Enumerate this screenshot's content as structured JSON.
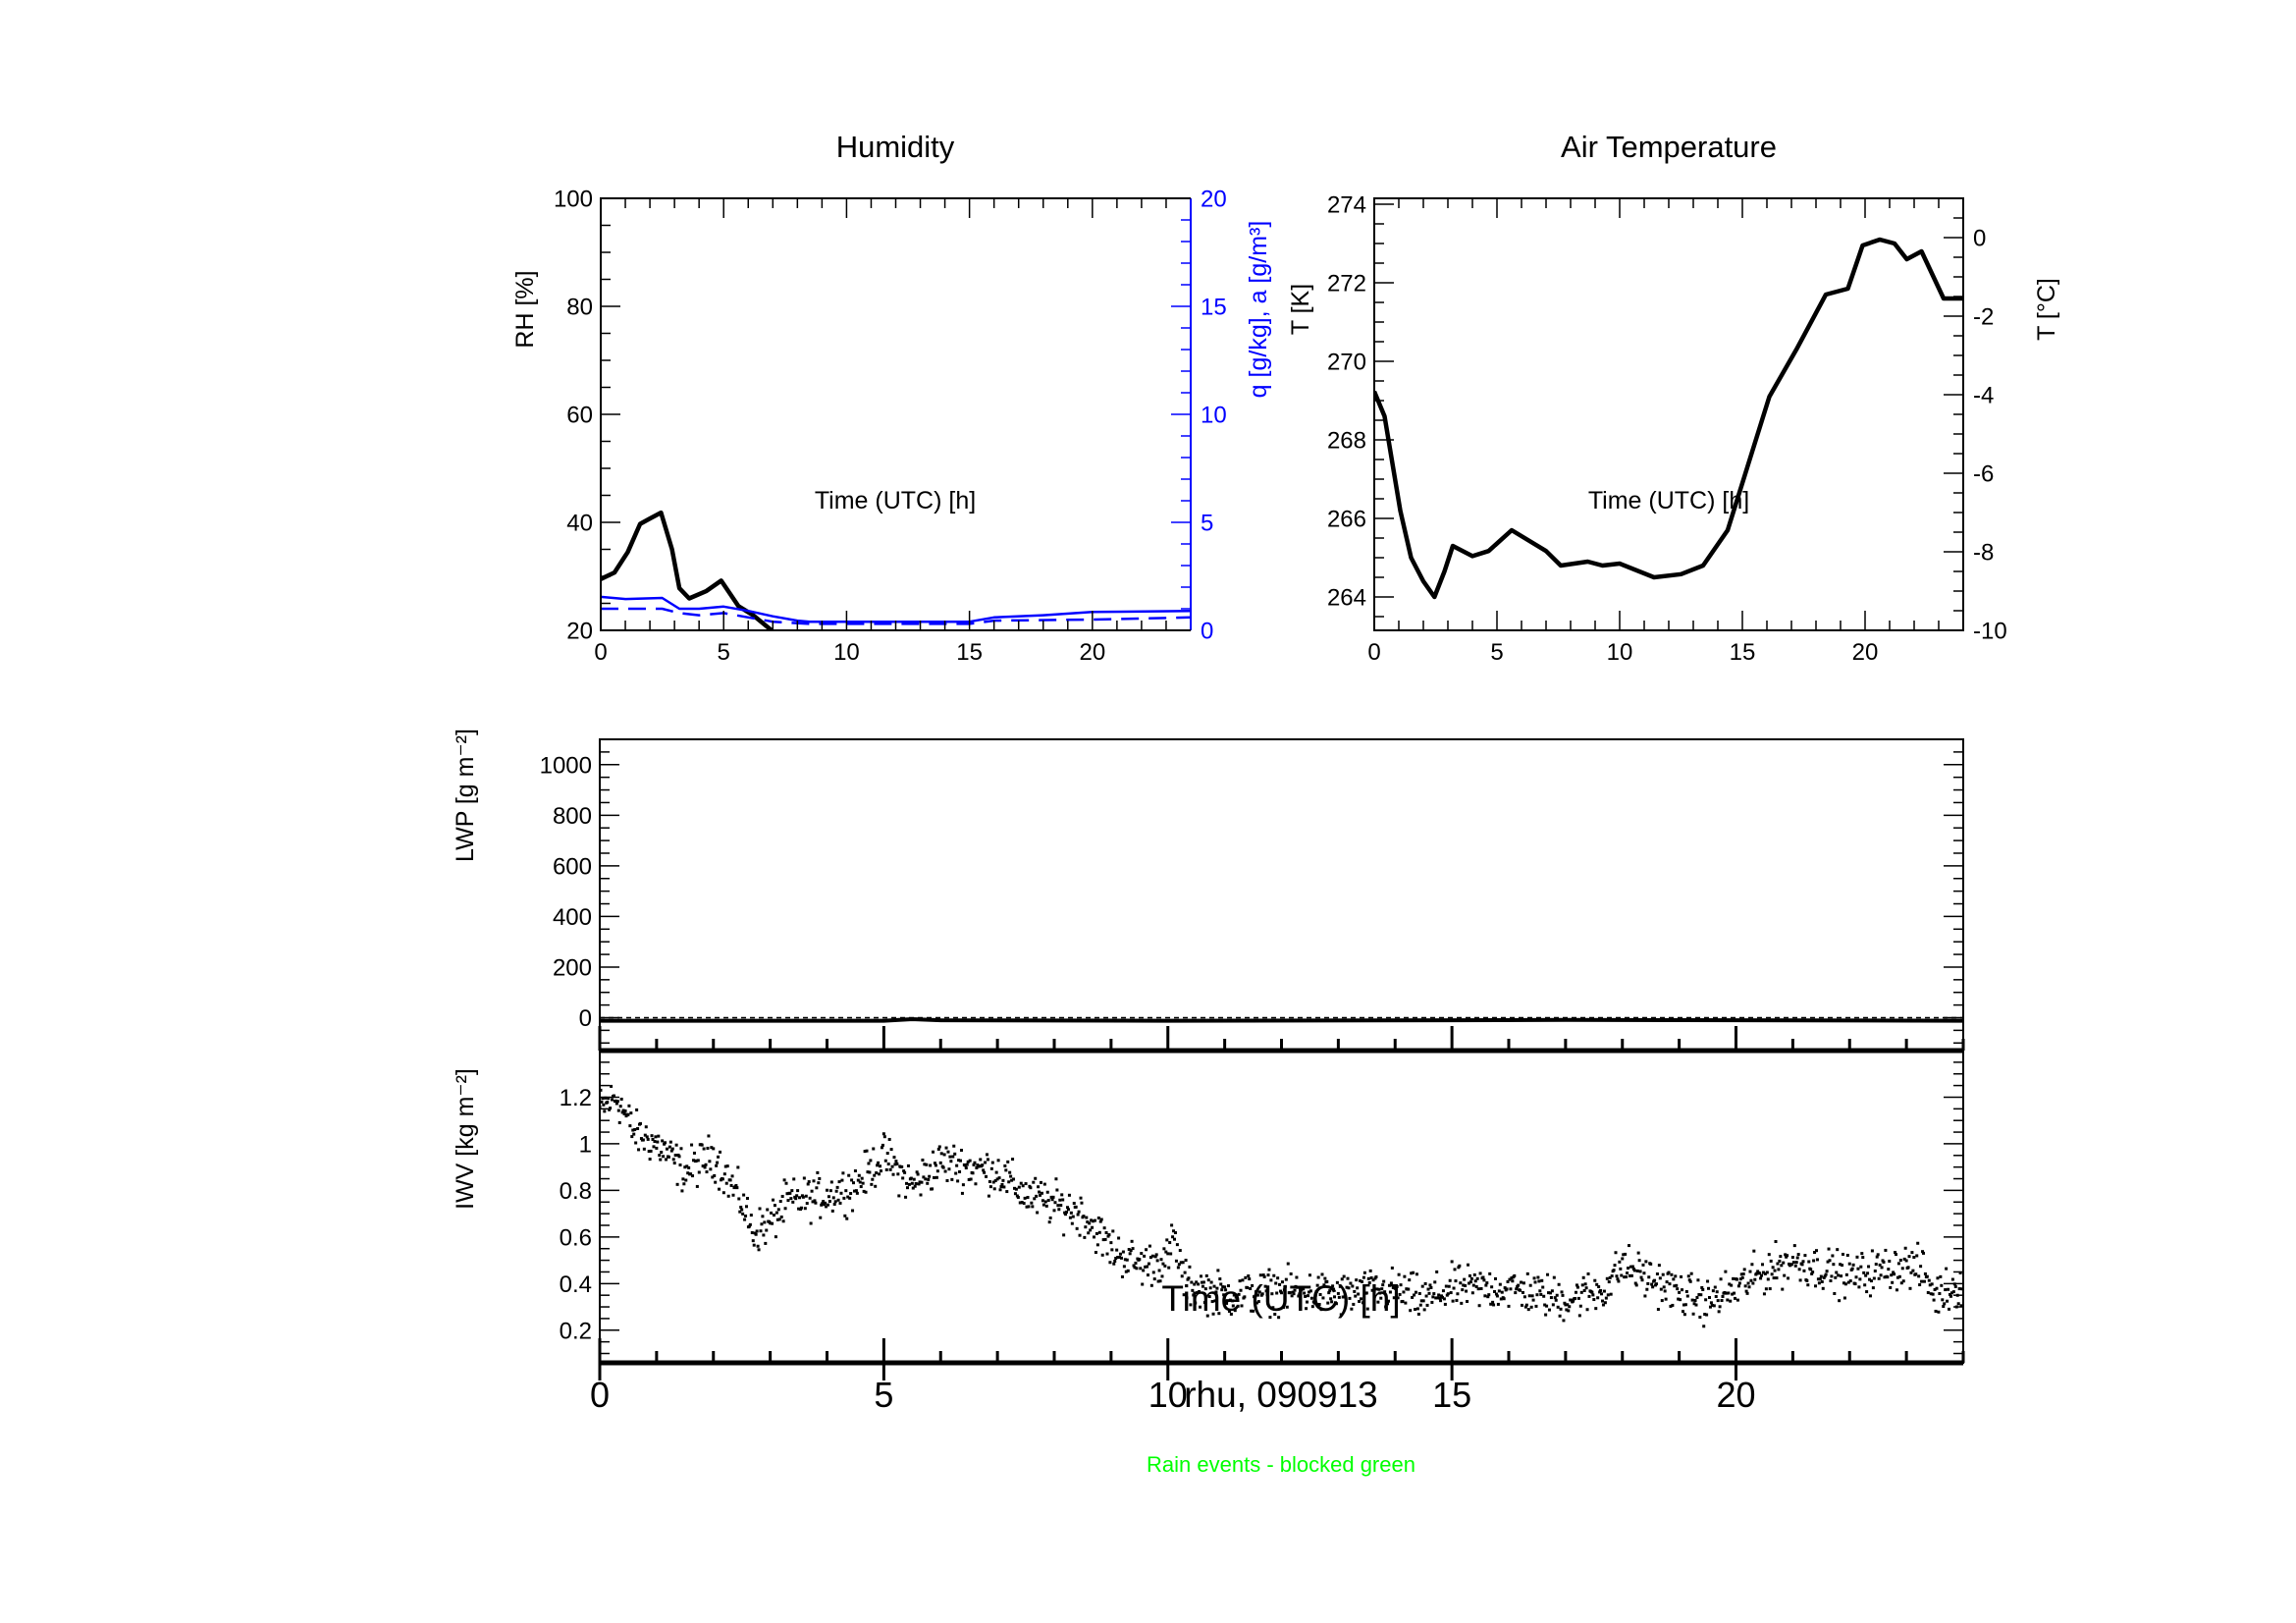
{
  "chart_data": [
    {
      "id": "humidity",
      "type": "line",
      "title": "Humidity",
      "xlabel": "Time (UTC) [h]",
      "ylabel": "RH [%]",
      "y2label": "q [g/kg], a [g/m³]",
      "xlim": [
        0,
        24
      ],
      "ylim": [
        20,
        100
      ],
      "y2lim": [
        0,
        20
      ],
      "xticks": [
        0,
        5,
        10,
        15,
        20
      ],
      "yticks": [
        20,
        40,
        60,
        80,
        100
      ],
      "y2ticks": [
        0,
        5,
        10,
        15,
        20
      ],
      "colors": {
        "rh": "#000000",
        "q": "#0000ff",
        "a": "#0000ff"
      },
      "series": [
        {
          "name": "RH",
          "axis": "y",
          "style": "solid",
          "x": [
            0,
            0.56,
            1.1,
            1.6,
            2.0,
            2.45,
            2.9,
            3.2,
            3.6,
            4.3,
            4.9,
            5.6,
            6.2,
            6.95
          ],
          "y": [
            29.5,
            30.7,
            34.5,
            39.7,
            40.7,
            41.8,
            35,
            27.8,
            25.9,
            27.3,
            29.2,
            24.5,
            22.8,
            20
          ]
        },
        {
          "name": "q",
          "axis": "y2",
          "style": "solid",
          "x": [
            0,
            1,
            2.5,
            3.2,
            4,
            5,
            6,
            7,
            8,
            8.5,
            15,
            16,
            18,
            20,
            24
          ],
          "y": [
            1.55,
            1.45,
            1.5,
            1.0,
            1.0,
            1.1,
            0.9,
            0.65,
            0.45,
            0.4,
            0.4,
            0.6,
            0.7,
            0.85,
            0.9
          ]
        },
        {
          "name": "a",
          "axis": "y2",
          "style": "dashed",
          "x": [
            0,
            2.5,
            3.2,
            4,
            5,
            6,
            7,
            8.5,
            15,
            16,
            20,
            24
          ],
          "y": [
            1.0,
            1.0,
            0.8,
            0.7,
            0.8,
            0.6,
            0.4,
            0.3,
            0.3,
            0.45,
            0.5,
            0.6
          ]
        }
      ]
    },
    {
      "id": "air-temperature",
      "type": "line",
      "title": "Air Temperature",
      "xlabel": "Time (UTC) [h]",
      "ylabel": "T [K]",
      "y2label": "T [°C]",
      "xlim": [
        0,
        24
      ],
      "ylim": [
        263.15,
        274.15
      ],
      "y2lim": [
        -10,
        1
      ],
      "xticks": [
        0,
        5,
        10,
        15,
        20
      ],
      "yticks": [
        264,
        266,
        268,
        270,
        272,
        274
      ],
      "y2ticks": [
        -10,
        -8,
        -6,
        -4,
        -2,
        0
      ],
      "series": [
        {
          "name": "T",
          "axis": "y",
          "style": "solid",
          "x": [
            0,
            0.42,
            1.06,
            1.5,
            2.0,
            2.45,
            2.86,
            3.2,
            4.0,
            4.66,
            5.6,
            7.0,
            7.6,
            8.7,
            9.3,
            10,
            11.4,
            12.5,
            13.4,
            14.4,
            15.2,
            16.1,
            17.2,
            18.4,
            19.3,
            19.9,
            20.6,
            21.2,
            21.7,
            22.3,
            23.2,
            24
          ],
          "y": [
            269.23,
            268.6,
            266.2,
            265.0,
            264.4,
            264.0,
            264.65,
            265.3,
            265.04,
            265.17,
            265.7,
            265.17,
            264.8,
            264.9,
            264.8,
            264.85,
            264.5,
            264.58,
            264.8,
            265.7,
            267.3,
            269.1,
            270.3,
            271.7,
            271.85,
            272.95,
            273.1,
            273.0,
            272.6,
            272.8,
            271.6,
            271.6
          ]
        }
      ]
    },
    {
      "id": "lwp",
      "type": "line",
      "ylabel": "LWP [g m⁻²]",
      "xlim": [
        0,
        24
      ],
      "ylim": [
        -130,
        1100
      ],
      "yticks": [
        0,
        200,
        400,
        600,
        800,
        1000
      ],
      "series": [
        {
          "name": "LWP",
          "style": "solid",
          "x": [
            0,
            5,
            5.5,
            6,
            10,
            15,
            17,
            24
          ],
          "y": [
            -12,
            -12,
            -6,
            -10,
            -12,
            -10,
            -9,
            -12
          ]
        },
        {
          "name": "zero-line",
          "style": "dotted",
          "x": [
            0,
            24
          ],
          "y": [
            0,
            0
          ]
        }
      ]
    },
    {
      "id": "iwv",
      "type": "scatter",
      "ylabel": "IWV [kg m⁻²]",
      "xlabel": "Time (UTC) [h]",
      "xlim": [
        0,
        24
      ],
      "ylim": [
        0.06,
        1.4
      ],
      "xticks": [
        0,
        5,
        10,
        15,
        20
      ],
      "yticks": [
        0.2,
        0.4,
        0.6,
        0.8,
        1.0,
        1.2
      ],
      "points_per_hour": 60,
      "noise": 0.07,
      "trend": {
        "x": [
          0,
          0.3,
          0.6,
          1,
          1.5,
          2,
          2.5,
          2.7,
          3,
          3.3,
          4,
          4.5,
          5,
          5.5,
          6,
          7,
          7.5,
          8,
          8.5,
          9,
          9.5,
          10,
          10.1,
          10.3,
          11,
          12,
          13,
          14,
          14.5,
          15,
          16,
          17,
          17.7,
          18,
          18.5,
          19,
          19.5,
          20,
          20.5,
          21,
          22,
          23,
          23.3,
          23.5,
          24
        ],
        "y": [
          1.15,
          1.2,
          1.05,
          1.0,
          0.88,
          0.95,
          0.75,
          0.62,
          0.66,
          0.75,
          0.78,
          0.82,
          0.95,
          0.82,
          0.92,
          0.88,
          0.78,
          0.74,
          0.7,
          0.55,
          0.48,
          0.5,
          0.6,
          0.4,
          0.35,
          0.37,
          0.35,
          0.37,
          0.33,
          0.38,
          0.38,
          0.33,
          0.38,
          0.48,
          0.42,
          0.36,
          0.32,
          0.38,
          0.45,
          0.5,
          0.43,
          0.48,
          0.45,
          0.35,
          0.4
        ]
      }
    }
  ],
  "footer": {
    "station_date": "rhu, 090913",
    "note": "Rain events - blocked green",
    "note_color": "#00ff00"
  }
}
